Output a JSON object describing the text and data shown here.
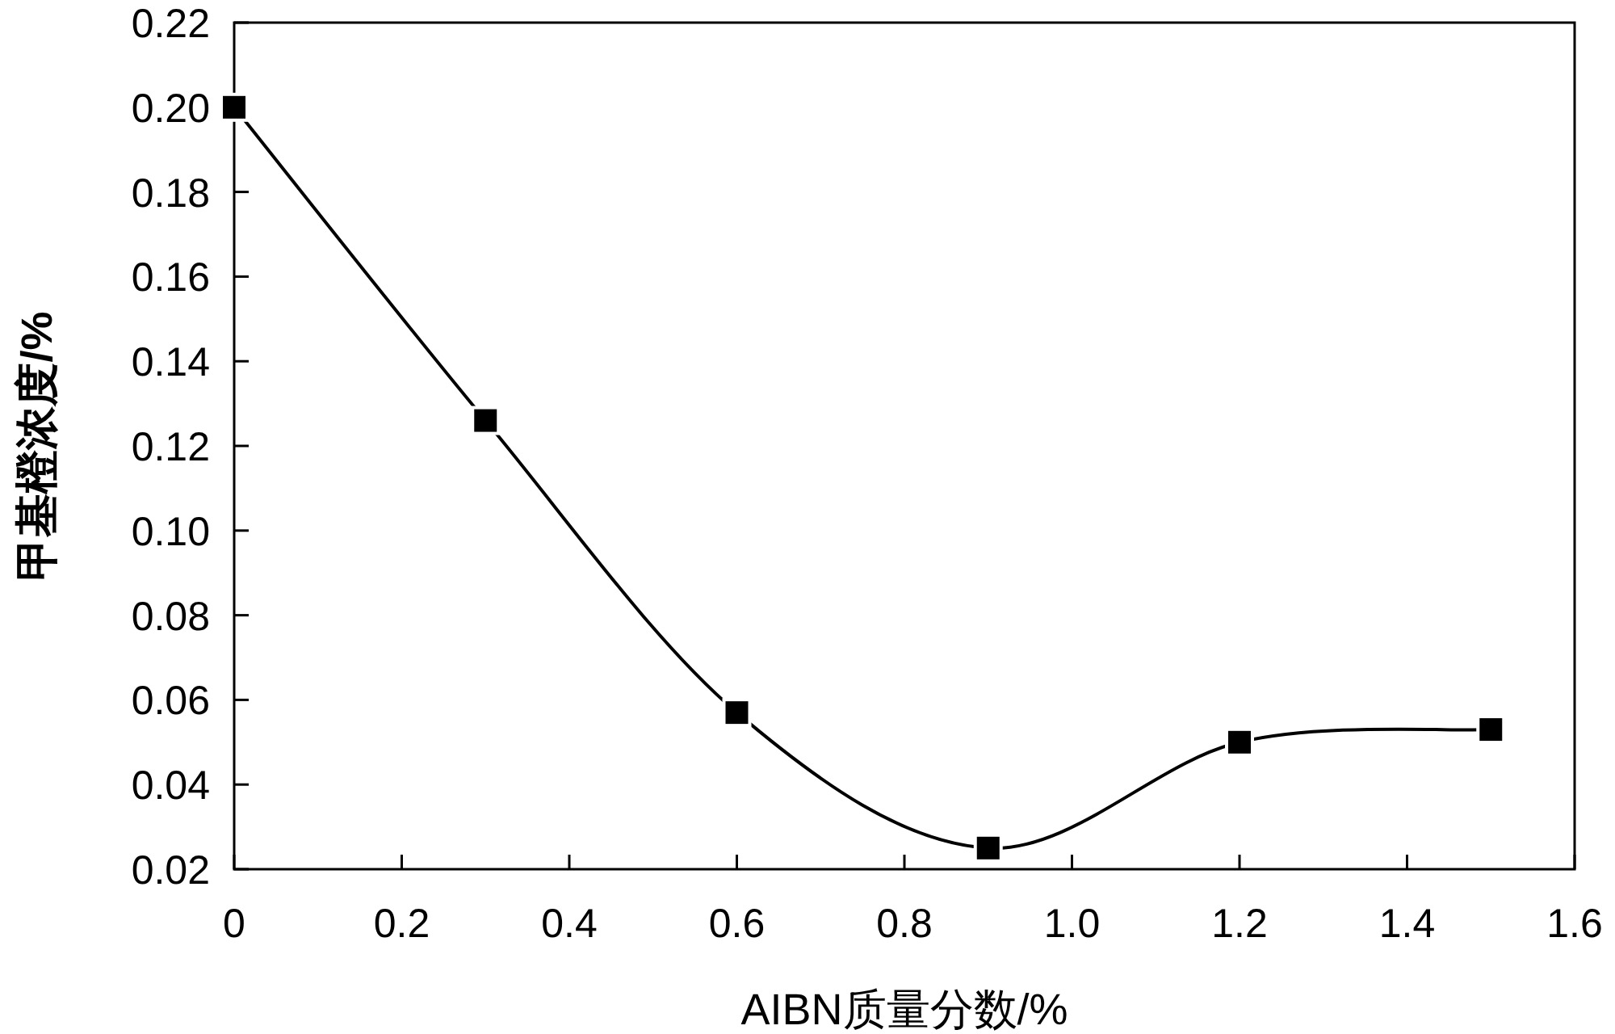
{
  "chart_data": {
    "type": "line",
    "xlabel": "AIBN质量分数/%",
    "ylabel": "甲基橙浓度/%",
    "x": [
      0,
      0.3,
      0.6,
      0.9,
      1.2,
      1.5
    ],
    "series": [
      {
        "color": "#000000",
        "values": [
          0.2,
          0.126,
          0.057,
          0.025,
          0.05,
          0.053
        ]
      }
    ],
    "marker": "square",
    "line_style": "solid",
    "grid": false,
    "xlim": [
      0,
      1.6
    ],
    "xticks": [
      0,
      0.2,
      0.4,
      0.6,
      0.8,
      {
        "value": 1,
        "label": "1.0"
      },
      1.2,
      1.4,
      1.6
    ],
    "ylim": [
      0.02,
      0.22
    ],
    "yticks": [
      0.02,
      0.04,
      0.06,
      0.08,
      {
        "value": 0.1,
        "label": "0.10"
      },
      0.12,
      0.14,
      0.16,
      0.18,
      {
        "value": 0.2,
        "label": "0.20"
      },
      0.22
    ]
  }
}
